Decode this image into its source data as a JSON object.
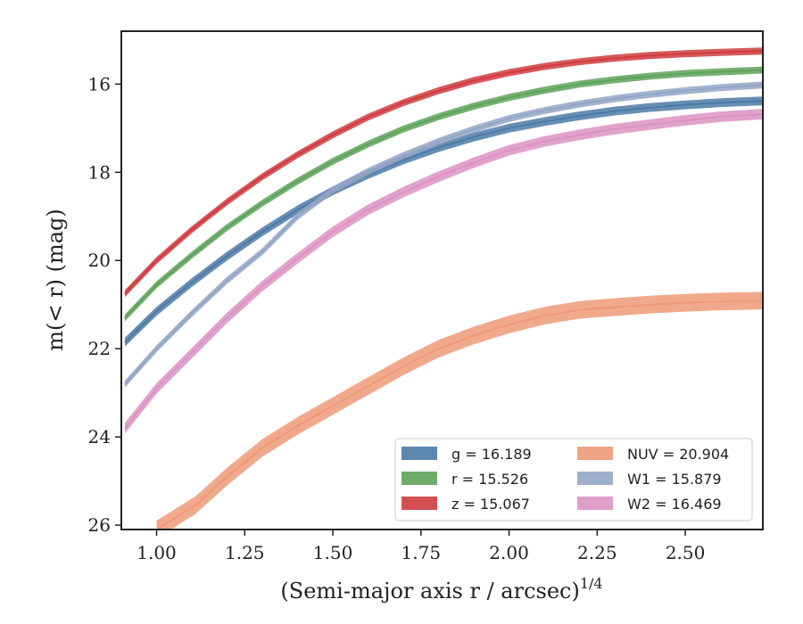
{
  "chart_data": {
    "type": "line",
    "title": "",
    "xlabel": "(Semi-major axis r / arcsec)",
    "xlabel_exponent": "1/4",
    "ylabel": "m(< r) (mag)",
    "xlim": [
      0.9,
      2.72
    ],
    "ylim": [
      26.1,
      14.8
    ],
    "y_inverted": true,
    "grid": false,
    "legend_placement": "lower-right",
    "legend_columns": 2,
    "x_ticks": [
      1.0,
      1.25,
      1.5,
      1.75,
      2.0,
      2.25,
      2.5
    ],
    "x_tick_labels": [
      "1.00",
      "1.25",
      "1.50",
      "1.75",
      "2.00",
      "2.25",
      "2.50"
    ],
    "y_ticks": [
      16,
      18,
      20,
      22,
      24,
      26
    ],
    "y_tick_labels": [
      "16",
      "18",
      "20",
      "22",
      "24",
      "26"
    ],
    "series": [
      {
        "name": "g",
        "legend_label": "g = 16.189",
        "color": "#4c7aa6",
        "x": [
          0.91,
          1.0,
          1.1,
          1.2,
          1.3,
          1.4,
          1.5,
          1.6,
          1.7,
          1.8,
          1.9,
          2.0,
          2.1,
          2.2,
          2.3,
          2.4,
          2.5,
          2.6,
          2.72
        ],
        "y": [
          21.85,
          21.15,
          20.5,
          19.9,
          19.35,
          18.85,
          18.42,
          18.05,
          17.72,
          17.44,
          17.2,
          17.0,
          16.85,
          16.72,
          16.61,
          16.53,
          16.47,
          16.42,
          16.38
        ],
        "band": 0.1
      },
      {
        "name": "r",
        "legend_label": "r = 15.526",
        "color": "#5ea35a",
        "x": [
          0.91,
          1.0,
          1.1,
          1.2,
          1.3,
          1.4,
          1.5,
          1.6,
          1.7,
          1.8,
          1.9,
          2.0,
          2.1,
          2.2,
          2.3,
          2.4,
          2.5,
          2.6,
          2.72
        ],
        "y": [
          21.3,
          20.55,
          19.88,
          19.25,
          18.7,
          18.2,
          17.75,
          17.36,
          17.02,
          16.74,
          16.5,
          16.3,
          16.14,
          16.0,
          15.9,
          15.82,
          15.76,
          15.72,
          15.68
        ],
        "band": 0.08
      },
      {
        "name": "z",
        "legend_label": "z = 15.067",
        "color": "#cf3c3f",
        "x": [
          0.91,
          1.0,
          1.1,
          1.2,
          1.3,
          1.4,
          1.5,
          1.6,
          1.7,
          1.8,
          1.9,
          2.0,
          2.1,
          2.2,
          2.3,
          2.4,
          2.5,
          2.6,
          2.72
        ],
        "y": [
          20.75,
          20.0,
          19.3,
          18.67,
          18.1,
          17.6,
          17.15,
          16.75,
          16.42,
          16.15,
          15.92,
          15.74,
          15.6,
          15.49,
          15.41,
          15.35,
          15.31,
          15.28,
          15.25
        ],
        "band": 0.08
      },
      {
        "name": "NUV",
        "legend_label": "NUV = 20.904",
        "color": "#ee9a78",
        "x": [
          1.0,
          1.11,
          1.2,
          1.3,
          1.4,
          1.5,
          1.6,
          1.7,
          1.8,
          1.9,
          2.0,
          2.1,
          2.2,
          2.31,
          2.4,
          2.5,
          2.6,
          2.72
        ],
        "y": [
          26.1,
          25.55,
          24.9,
          24.25,
          23.75,
          23.3,
          22.85,
          22.4,
          22.0,
          21.7,
          21.45,
          21.25,
          21.12,
          21.05,
          21.0,
          20.96,
          20.93,
          20.91
        ],
        "band": 0.2
      },
      {
        "name": "W1",
        "legend_label": "W1 = 15.879",
        "color": "#93a6c5",
        "x": [
          0.91,
          1.0,
          1.1,
          1.2,
          1.3,
          1.4,
          1.5,
          1.6,
          1.7,
          1.8,
          1.9,
          2.0,
          2.1,
          2.2,
          2.3,
          2.4,
          2.5,
          2.6,
          2.72
        ],
        "y": [
          22.8,
          22.0,
          21.2,
          20.45,
          19.8,
          19.0,
          18.4,
          17.98,
          17.62,
          17.3,
          17.02,
          16.78,
          16.6,
          16.45,
          16.33,
          16.23,
          16.15,
          16.08,
          16.02
        ],
        "band": 0.08
      },
      {
        "name": "W2",
        "legend_label": "W2 = 16.469",
        "color": "#dc93c3",
        "x": [
          0.91,
          1.0,
          1.1,
          1.2,
          1.3,
          1.4,
          1.5,
          1.6,
          1.7,
          1.8,
          1.9,
          2.0,
          2.1,
          2.2,
          2.3,
          2.4,
          2.5,
          2.6,
          2.72
        ],
        "y": [
          23.8,
          22.9,
          22.1,
          21.3,
          20.58,
          19.95,
          19.35,
          18.85,
          18.45,
          18.1,
          17.78,
          17.5,
          17.3,
          17.15,
          17.02,
          16.92,
          16.82,
          16.74,
          16.68
        ],
        "band": 0.12
      }
    ]
  }
}
